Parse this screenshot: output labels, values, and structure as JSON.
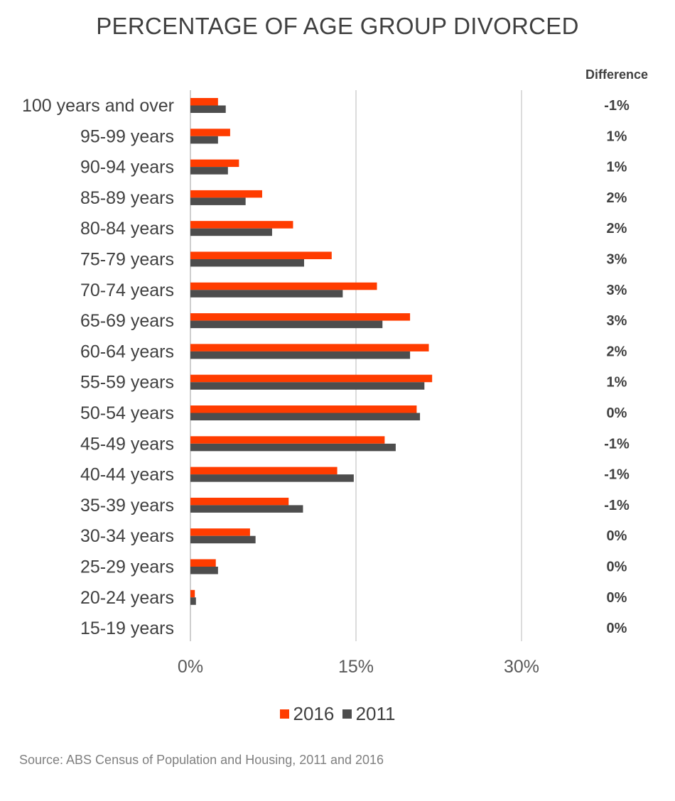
{
  "chart_data": {
    "type": "bar",
    "orientation": "horizontal",
    "title": "PERCENTAGE OF AGE GROUP DIVORCED",
    "categories": [
      "100 years and over",
      "95-99 years",
      "90-94 years",
      "85-89 years",
      "80-84 years",
      "75-79 years",
      "70-74 years",
      "65-69 years",
      "60-64 years",
      "55-59 years",
      "50-54 years",
      "45-49 years",
      "40-44 years",
      "35-39 years",
      "30-34 years",
      "25-29 years",
      "20-24 years",
      "15-19 years"
    ],
    "series": [
      {
        "name": "2016",
        "color": "#ff3c00",
        "values": [
          2.5,
          3.6,
          4.4,
          6.5,
          9.3,
          12.8,
          16.9,
          19.9,
          21.6,
          21.9,
          20.5,
          17.6,
          13.3,
          8.9,
          5.4,
          2.3,
          0.4,
          0.0
        ]
      },
      {
        "name": "2011",
        "color": "#4d4d4d",
        "values": [
          3.2,
          2.5,
          3.4,
          5.0,
          7.4,
          10.3,
          13.8,
          17.4,
          19.9,
          21.2,
          20.8,
          18.6,
          14.8,
          10.2,
          5.9,
          2.5,
          0.5,
          0.0
        ]
      }
    ],
    "difference_header": "Difference",
    "differences": [
      "-1%",
      "1%",
      "1%",
      "2%",
      "2%",
      "3%",
      "3%",
      "3%",
      "2%",
      "1%",
      "0%",
      "-1%",
      "-1%",
      "-1%",
      "0%",
      "0%",
      "0%",
      "0%"
    ],
    "x_ticks": [
      0,
      15,
      30
    ],
    "x_tick_labels": [
      "0%",
      "15%",
      "30%"
    ],
    "xlim": [
      0,
      30
    ],
    "grid": true,
    "legend_position": "bottom"
  },
  "source": "Source: ABS Census of Population and Housing, 2011 and 2016"
}
